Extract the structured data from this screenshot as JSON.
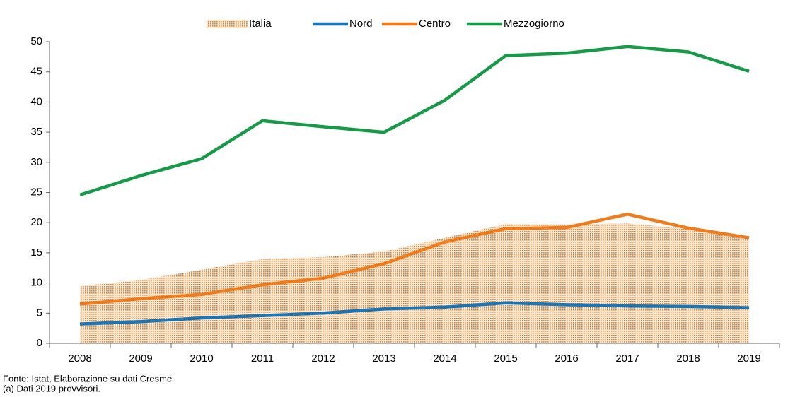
{
  "chart_data": {
    "type": "line",
    "categories": [
      "2008",
      "2009",
      "2010",
      "2011",
      "2012",
      "2013",
      "2014",
      "2015",
      "2016",
      "2017",
      "2018",
      "2019"
    ],
    "series": [
      {
        "name": "Italia",
        "color": "#e6a266",
        "style": "area",
        "values": [
          9.5,
          10.5,
          12.2,
          14.0,
          14.3,
          15.2,
          17.5,
          19.8,
          19.7,
          19.9,
          19.0,
          17.5
        ]
      },
      {
        "name": "Nord",
        "color": "#1b75b3",
        "values": [
          3.2,
          3.6,
          4.2,
          4.6,
          5.0,
          5.7,
          6.0,
          6.7,
          6.4,
          6.2,
          6.1,
          5.9
        ]
      },
      {
        "name": "Centro",
        "color": "#f07b1c",
        "values": [
          6.5,
          7.4,
          8.1,
          9.7,
          10.8,
          13.2,
          16.8,
          19.0,
          19.2,
          21.4,
          19.1,
          17.5
        ]
      },
      {
        "name": "Mezzogiorno",
        "color": "#179a48",
        "values": [
          24.6,
          27.8,
          30.6,
          36.9,
          35.9,
          35.0,
          40.3,
          47.7,
          48.1,
          49.2,
          48.3,
          45.1
        ]
      }
    ],
    "ylim": [
      0,
      50
    ],
    "yticks": [
      0,
      5,
      10,
      15,
      20,
      25,
      30,
      35,
      40,
      45,
      50
    ],
    "legend": "top",
    "notes": [
      "Fonte: Istat, Elaborazione su dati Cresme",
      "(a) Dati 2019 provvisori."
    ]
  }
}
